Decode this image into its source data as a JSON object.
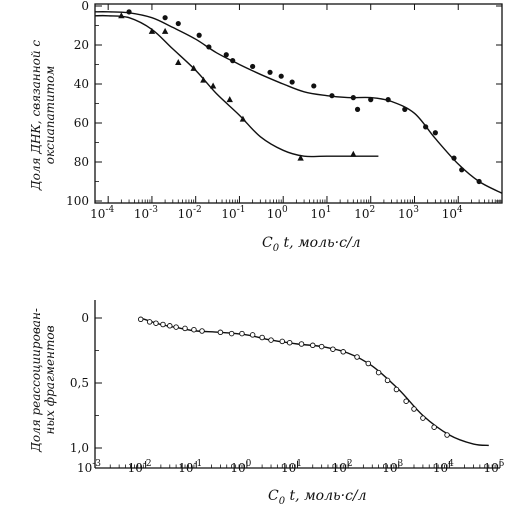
{
  "chart_data": [
    {
      "type": "line",
      "xscale": "log",
      "xlabel": "C0 t, моль·с/л",
      "xlabel_parts": {
        "main": "C",
        "sub": "0",
        "rest": " t, моль·с/л"
      },
      "ylabel": [
        "Доля ДНК, связанной с",
        "оксиапатитом"
      ],
      "xlim": [
        5e-05,
        100000
      ],
      "ylim": [
        0,
        100
      ],
      "y_inverted": true,
      "x_ticks": [
        {
          "value": 0.0001,
          "label": "10",
          "exp": "-4"
        },
        {
          "value": 0.001,
          "label": "10",
          "exp": "-3"
        },
        {
          "value": 0.01,
          "label": "10",
          "exp": "-2"
        },
        {
          "value": 0.1,
          "label": "10",
          "exp": "-1"
        },
        {
          "value": 1,
          "label": "10",
          "exp": "0"
        },
        {
          "value": 10,
          "label": "10",
          "exp": "1"
        },
        {
          "value": 100,
          "label": "10",
          "exp": "2"
        },
        {
          "value": 1000,
          "label": "10",
          "exp": "3"
        },
        {
          "value": 10000,
          "label": "10",
          "exp": "4"
        }
      ],
      "y_ticks": [
        {
          "value": 0,
          "label": "0"
        },
        {
          "value": 20,
          "label": "20"
        },
        {
          "value": 40,
          "label": "40"
        },
        {
          "value": 60,
          "label": "60"
        },
        {
          "value": 80,
          "label": "80"
        },
        {
          "value": 100,
          "label": "100"
        }
      ],
      "series": [
        {
          "marker": "circle",
          "curve": [
            [
              4e-05,
              3
            ],
            [
              0.0001,
              3
            ],
            [
              0.0003,
              3.5
            ],
            [
              0.001,
              6
            ],
            [
              0.003,
              11
            ],
            [
              0.01,
              17
            ],
            [
              0.03,
              24
            ],
            [
              0.1,
              30
            ],
            [
              0.3,
              35
            ],
            [
              1,
              40
            ],
            [
              3,
              44
            ],
            [
              10,
              46
            ],
            [
              30,
              47
            ],
            [
              100,
              47
            ],
            [
              300,
              49
            ],
            [
              1000,
              55
            ],
            [
              3000,
              68
            ],
            [
              10000,
              81
            ],
            [
              30000,
              90
            ],
            [
              100000,
              96
            ]
          ],
          "points": [
            [
              0.0003,
              3
            ],
            [
              0.002,
              6
            ],
            [
              0.004,
              9
            ],
            [
              0.012,
              15
            ],
            [
              0.02,
              21
            ],
            [
              0.05,
              25
            ],
            [
              0.07,
              28
            ],
            [
              0.2,
              31
            ],
            [
              0.5,
              34
            ],
            [
              0.9,
              36
            ],
            [
              1.6,
              39
            ],
            [
              5,
              41
            ],
            [
              13,
              46
            ],
            [
              40,
              47
            ],
            [
              50,
              53
            ],
            [
              100,
              48
            ],
            [
              250,
              48
            ],
            [
              600,
              53
            ],
            [
              1800,
              62
            ],
            [
              3000,
              65
            ],
            [
              8000,
              78
            ],
            [
              12000,
              84
            ],
            [
              30000,
              90
            ]
          ]
        },
        {
          "marker": "triangle",
          "curve": [
            [
              4e-05,
              5
            ],
            [
              0.0001,
              5
            ],
            [
              0.0003,
              6
            ],
            [
              0.001,
              12
            ],
            [
              0.003,
              22
            ],
            [
              0.01,
              33
            ],
            [
              0.03,
              45
            ],
            [
              0.1,
              56
            ],
            [
              0.3,
              67
            ],
            [
              1,
              74
            ],
            [
              3,
              77
            ],
            [
              10,
              77
            ],
            [
              100,
              77
            ],
            [
              150,
              77
            ]
          ],
          "points": [
            [
              0.0002,
              5
            ],
            [
              0.001,
              13
            ],
            [
              0.002,
              13
            ],
            [
              0.004,
              29
            ],
            [
              0.009,
              32
            ],
            [
              0.015,
              38
            ],
            [
              0.025,
              41
            ],
            [
              0.06,
              48
            ],
            [
              0.12,
              58
            ],
            [
              2.5,
              78
            ],
            [
              40,
              76
            ]
          ]
        }
      ]
    },
    {
      "type": "line",
      "xscale": "log",
      "xlabel": "C0 t, моль·с/л",
      "xlabel_parts": {
        "main": "C",
        "sub": "0",
        "rest": " t, моль·с/л"
      },
      "ylabel": [
        "Доля реассоциирован-",
        "ных фрагментов"
      ],
      "xlim": [
        0.001,
        100000
      ],
      "ylim": [
        -0.1,
        1.05
      ],
      "y_inverted": true,
      "x_ticks": [
        {
          "value": 0.001,
          "label": "10",
          "exp": "-3"
        },
        {
          "value": 0.01,
          "label": "10",
          "exp": "-2"
        },
        {
          "value": 0.1,
          "label": "10",
          "exp": "-1"
        },
        {
          "value": 1,
          "label": "10",
          "exp": "0"
        },
        {
          "value": 10,
          "label": "10",
          "exp": "1"
        },
        {
          "value": 100,
          "label": "10",
          "exp": "2"
        },
        {
          "value": 1000,
          "label": "10",
          "exp": "3"
        },
        {
          "value": 10000,
          "label": "10",
          "exp": "4"
        },
        {
          "value": 100000,
          "label": "10",
          "exp": "5"
        }
      ],
      "y_ticks": [
        {
          "value": 0,
          "label": "0"
        },
        {
          "value": 0.5,
          "label": "0,5"
        },
        {
          "value": 1.0,
          "label": "1,0"
        }
      ],
      "series": [
        {
          "marker": "open-circle",
          "curve": [
            [
              0.008,
              0.0
            ],
            [
              0.02,
              0.05
            ],
            [
              0.05,
              0.08
            ],
            [
              0.1,
              0.1
            ],
            [
              0.3,
              0.11
            ],
            [
              1,
              0.13
            ],
            [
              3,
              0.17
            ],
            [
              10,
              0.2
            ],
            [
              30,
              0.22
            ],
            [
              100,
              0.27
            ],
            [
              300,
              0.37
            ],
            [
              1000,
              0.55
            ],
            [
              3000,
              0.75
            ],
            [
              10000,
              0.9
            ],
            [
              30000,
              0.97
            ],
            [
              60000,
              0.98
            ]
          ],
          "points": [
            [
              0.008,
              0.01
            ],
            [
              0.012,
              0.03
            ],
            [
              0.016,
              0.04
            ],
            [
              0.022,
              0.05
            ],
            [
              0.03,
              0.06
            ],
            [
              0.04,
              0.07
            ],
            [
              0.06,
              0.08
            ],
            [
              0.09,
              0.09
            ],
            [
              0.13,
              0.1
            ],
            [
              0.3,
              0.11
            ],
            [
              0.5,
              0.12
            ],
            [
              0.8,
              0.12
            ],
            [
              1.3,
              0.13
            ],
            [
              2,
              0.15
            ],
            [
              3,
              0.17
            ],
            [
              5,
              0.18
            ],
            [
              7,
              0.19
            ],
            [
              12,
              0.2
            ],
            [
              20,
              0.21
            ],
            [
              30,
              0.22
            ],
            [
              50,
              0.24
            ],
            [
              80,
              0.26
            ],
            [
              150,
              0.3
            ],
            [
              250,
              0.35
            ],
            [
              400,
              0.42
            ],
            [
              600,
              0.48
            ],
            [
              900,
              0.55
            ],
            [
              1400,
              0.64
            ],
            [
              2000,
              0.7
            ],
            [
              3000,
              0.77
            ],
            [
              5000,
              0.84
            ],
            [
              9000,
              0.9
            ]
          ]
        }
      ]
    }
  ]
}
